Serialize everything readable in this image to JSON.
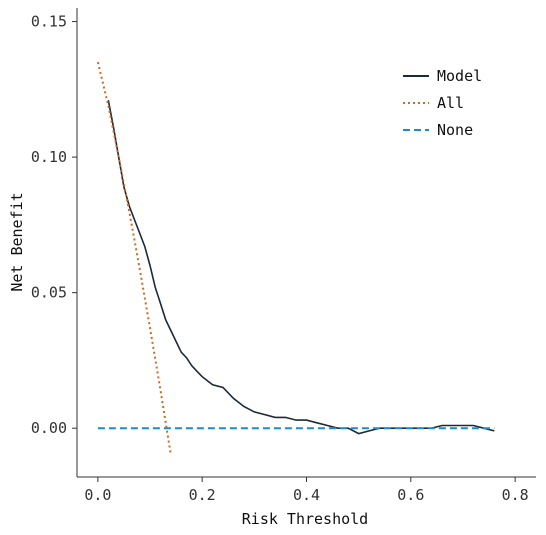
{
  "chart_data": {
    "type": "line",
    "xlabel": "Risk Threshold",
    "ylabel": "Net Benefit",
    "xlim": [
      -0.04,
      0.84
    ],
    "ylim": [
      -0.018,
      0.155
    ],
    "x_ticks": [
      0.0,
      0.2,
      0.4,
      0.6,
      0.8
    ],
    "x_tick_labels": [
      "0.0",
      "0.2",
      "0.4",
      "0.6",
      "0.8"
    ],
    "y_ticks": [
      0.0,
      0.05,
      0.1,
      0.15
    ],
    "y_tick_labels": [
      "0.00",
      "0.05",
      "0.10",
      "0.15"
    ],
    "grid": false,
    "legend_position": "top-right",
    "series": [
      {
        "name": "Model",
        "color": "#1b2a38",
        "dash": "solid",
        "x": [
          0.02,
          0.03,
          0.04,
          0.05,
          0.06,
          0.07,
          0.08,
          0.09,
          0.1,
          0.11,
          0.12,
          0.13,
          0.14,
          0.15,
          0.16,
          0.17,
          0.18,
          0.19,
          0.2,
          0.22,
          0.24,
          0.26,
          0.28,
          0.3,
          0.32,
          0.34,
          0.36,
          0.38,
          0.4,
          0.42,
          0.44,
          0.46,
          0.48,
          0.5,
          0.52,
          0.54,
          0.56,
          0.58,
          0.6,
          0.62,
          0.64,
          0.66,
          0.68,
          0.7,
          0.72,
          0.74,
          0.76
        ],
        "y": [
          0.121,
          0.111,
          0.1,
          0.089,
          0.082,
          0.077,
          0.072,
          0.067,
          0.06,
          0.052,
          0.046,
          0.04,
          0.036,
          0.032,
          0.028,
          0.026,
          0.023,
          0.021,
          0.019,
          0.016,
          0.015,
          0.011,
          0.008,
          0.006,
          0.005,
          0.004,
          0.004,
          0.003,
          0.003,
          0.002,
          0.001,
          0.0,
          0.0,
          -0.002,
          -0.001,
          0.0,
          0.0,
          0.0,
          0.0,
          0.0,
          0.0,
          0.001,
          0.001,
          0.001,
          0.001,
          0.0,
          -0.001
        ]
      },
      {
        "name": "All",
        "color": "#d2691e",
        "dash": "dotted",
        "x": [
          0.0,
          0.02,
          0.04,
          0.06,
          0.08,
          0.1,
          0.12,
          0.14
        ],
        "y": [
          0.135,
          0.119,
          0.1,
          0.08,
          0.059,
          0.037,
          0.014,
          -0.01
        ]
      },
      {
        "name": "None",
        "color": "#1f8ad2",
        "dash": "dashed",
        "x": [
          0.0,
          0.76
        ],
        "y": [
          0.0,
          0.0
        ]
      }
    ]
  }
}
